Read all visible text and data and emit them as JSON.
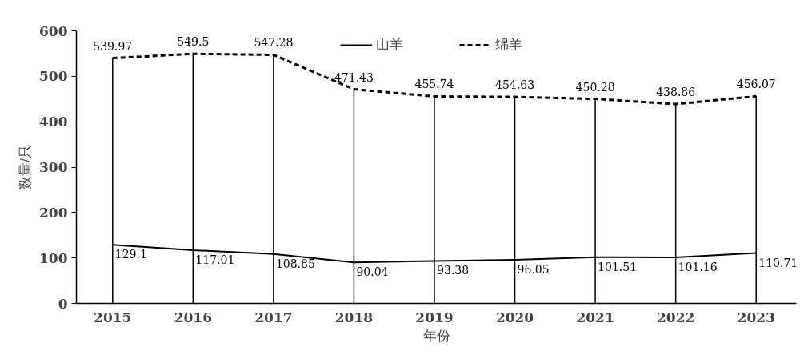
{
  "chart_data": {
    "type": "line",
    "xlabel": "年份",
    "ylabel": "数量/只",
    "categories": [
      "2015",
      "2016",
      "2017",
      "2018",
      "2019",
      "2020",
      "2021",
      "2022",
      "2023"
    ],
    "series": [
      {
        "name": "山羊",
        "color": "#000000",
        "line_style": "solid",
        "values": [
          129.1,
          117.01,
          108.85,
          90.04,
          93.38,
          96.05,
          101.51,
          101.16,
          110.71
        ]
      },
      {
        "name": "绵羊",
        "color": "#000000",
        "line_style": "dashed",
        "values": [
          539.97,
          549.5,
          547.28,
          471.43,
          455.74,
          454.63,
          450.28,
          438.86,
          456.07
        ]
      }
    ],
    "ref_lines": [
      {
        "axis": "x",
        "value": "2015",
        "color": "#000000"
      },
      {
        "axis": "x",
        "value": "2016",
        "color": "#000000"
      },
      {
        "axis": "x",
        "value": "2017",
        "color": "#000000"
      },
      {
        "axis": "x",
        "value": "2018",
        "color": "#000000"
      },
      {
        "axis": "x",
        "value": "2019",
        "color": "#000000"
      },
      {
        "axis": "x",
        "value": "2020",
        "color": "#000000"
      },
      {
        "axis": "x",
        "value": "2021",
        "color": "#000000"
      },
      {
        "axis": "x",
        "value": "2022",
        "color": "#000000"
      },
      {
        "axis": "x",
        "value": "2023",
        "color": "#000000"
      }
    ],
    "ylim": [
      0,
      600
    ],
    "yticks": [
      0,
      100,
      200,
      300,
      400,
      500,
      600
    ],
    "grid": false,
    "legend": "top",
    "marker": "none",
    "data_labels": true
  }
}
